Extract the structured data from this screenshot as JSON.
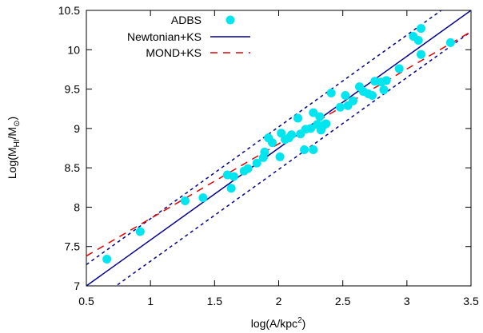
{
  "chart_data": {
    "type": "scatter",
    "xlabel_main": "log(A/kpc",
    "xlabel_sup": "2",
    "xlabel_tail": ")",
    "ylabel_main": "Log(M",
    "ylabel_sub": "HI",
    "ylabel_mid": "/M",
    "ylabel_sub2": "⊙",
    "ylabel_tail": ")",
    "xlim": [
      0.5,
      3.5
    ],
    "ylim": [
      7,
      10.5
    ],
    "xticks": [
      0.5,
      1,
      1.5,
      2,
      2.5,
      3,
      3.5
    ],
    "xtick_labels": [
      "0.5",
      "1",
      "1.5",
      "2",
      "2.5",
      "3",
      "3.5"
    ],
    "yticks": [
      7,
      7.5,
      8,
      8.5,
      9,
      9.5,
      10,
      10.5
    ],
    "ytick_labels": [
      "7",
      "7.5",
      "8",
      "8.5",
      "9",
      "9.5",
      "10",
      "10.5"
    ],
    "grid": false,
    "legend_position": "top-left",
    "legend": [
      {
        "label": "ADBS",
        "style": "markers",
        "color": "#00e5ee"
      },
      {
        "label": "Newtonian+KS",
        "style": "solid",
        "color": "#00008b"
      },
      {
        "label": "MOND+KS",
        "style": "dashed",
        "color": "#e00000"
      }
    ],
    "lines": {
      "newtonian": {
        "x": [
          0.5,
          3.5
        ],
        "y": [
          7.0,
          10.5
        ]
      },
      "newtonian_upper": {
        "x": [
          0.5,
          3.5
        ],
        "y": [
          7.27,
          10.77
        ]
      },
      "newtonian_lower": {
        "x": [
          0.5,
          3.5
        ],
        "y": [
          6.73,
          10.23
        ]
      },
      "mond": {
        "x": [
          0.5,
          3.5
        ],
        "y": [
          7.38,
          10.23
        ]
      }
    },
    "series": [
      {
        "name": "ADBS",
        "color": "#00e5ee",
        "points": [
          [
            0.66,
            7.34
          ],
          [
            0.92,
            7.69
          ],
          [
            1.27,
            8.08
          ],
          [
            1.41,
            8.12
          ],
          [
            1.6,
            8.41
          ],
          [
            1.63,
            8.24
          ],
          [
            1.65,
            8.39
          ],
          [
            1.73,
            8.46
          ],
          [
            1.76,
            8.49
          ],
          [
            1.83,
            8.56
          ],
          [
            1.88,
            8.63
          ],
          [
            1.89,
            8.7
          ],
          [
            1.92,
            8.88
          ],
          [
            1.95,
            8.82
          ],
          [
            2.01,
            8.64
          ],
          [
            2.02,
            8.94
          ],
          [
            2.05,
            8.86
          ],
          [
            2.08,
            8.88
          ],
          [
            2.1,
            8.92
          ],
          [
            2.15,
            9.13
          ],
          [
            2.17,
            8.93
          ],
          [
            2.2,
            8.73
          ],
          [
            2.21,
            8.99
          ],
          [
            2.25,
            9.0
          ],
          [
            2.27,
            8.73
          ],
          [
            2.27,
            9.2
          ],
          [
            2.3,
            9.05
          ],
          [
            2.32,
            9.15
          ],
          [
            2.33,
            8.98
          ],
          [
            2.35,
            9.04
          ],
          [
            2.37,
            9.06
          ],
          [
            2.41,
            9.45
          ],
          [
            2.48,
            9.27
          ],
          [
            2.52,
            9.42
          ],
          [
            2.54,
            9.29
          ],
          [
            2.58,
            9.35
          ],
          [
            2.63,
            9.53
          ],
          [
            2.66,
            9.47
          ],
          [
            2.7,
            9.44
          ],
          [
            2.73,
            9.42
          ],
          [
            2.75,
            9.6
          ],
          [
            2.8,
            9.59
          ],
          [
            2.82,
            9.49
          ],
          [
            2.84,
            9.61
          ],
          [
            2.94,
            9.76
          ],
          [
            3.05,
            10.17
          ],
          [
            3.09,
            10.12
          ],
          [
            3.11,
            10.27
          ],
          [
            3.11,
            9.94
          ],
          [
            3.34,
            10.09
          ]
        ]
      }
    ]
  }
}
